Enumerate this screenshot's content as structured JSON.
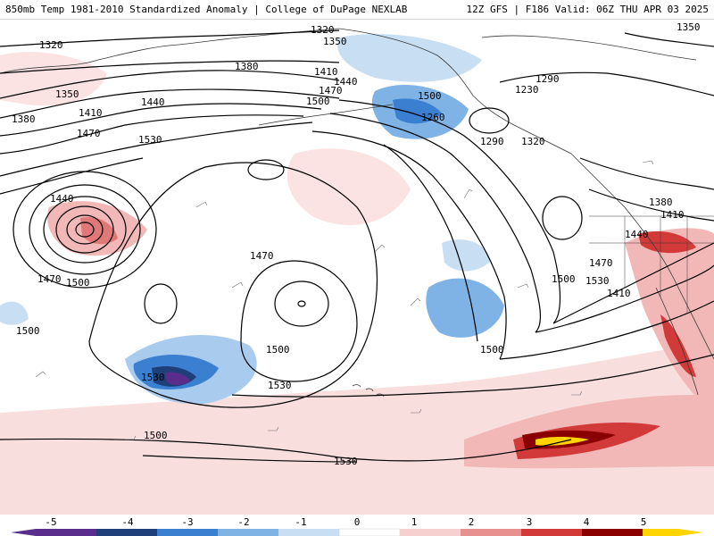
{
  "header": {
    "title": "850mb Temp 1981-2010 Standardized Anomaly | College of DuPage NEXLAB",
    "run_info": "12Z GFS | F186 Valid: 06Z THU APR 03 2025"
  },
  "map": {
    "type": "geographic field map",
    "fill_field": "850mb temperature standardized anomaly",
    "contour_field": "850mb geopotential height",
    "contour_labels": [
      "1320",
      "1350",
      "1380",
      "1410",
      "1440",
      "1470",
      "1500",
      "1530",
      "1320",
      "1350",
      "1380",
      "1410",
      "1440",
      "1470",
      "1500",
      "1260",
      "1290",
      "1290",
      "1230",
      "1320",
      "1350",
      "1380",
      "1410",
      "1440",
      "1470",
      "1500",
      "1530",
      "1410",
      "1440",
      "1470",
      "1500",
      "1500",
      "1470",
      "1500",
      "1530",
      "1530",
      "1500",
      "1500",
      "1530"
    ],
    "colors": {
      "contour": "#000000",
      "land_outline": "#3a3a3a"
    }
  },
  "legend": {
    "tick_labels": [
      "-5",
      "-4",
      "-3",
      "-2",
      "-1",
      "0",
      "1",
      "2",
      "3",
      "4",
      "5"
    ],
    "colors": [
      "#5a2d8c",
      "#1e3f7a",
      "#3a7fd0",
      "#7fb3e6",
      "#c8def2",
      "#ffffff",
      "#f6cfcf",
      "#e89090",
      "#d23a3a",
      "#8a0000",
      "#ffd400"
    ]
  }
}
